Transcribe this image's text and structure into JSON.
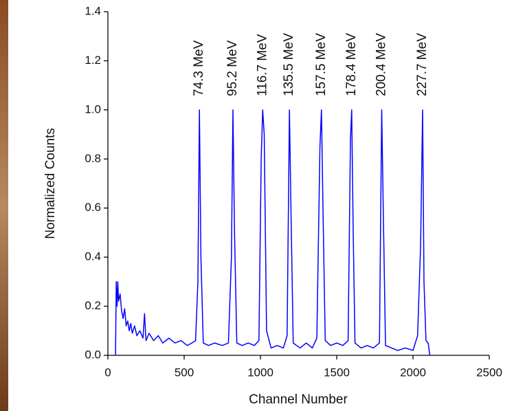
{
  "chart_data": {
    "type": "line",
    "x_label": "Channel Number",
    "y_label": "Normalized Counts",
    "xlim": [
      0,
      2500
    ],
    "xticks": [
      0,
      500,
      1000,
      1500,
      2000,
      2500
    ],
    "ylim": [
      0,
      1.4
    ],
    "yticks": [
      {
        "value": 0,
        "label": "0.0"
      },
      0.2,
      0.4,
      0.6,
      0.8,
      {
        "value": 1,
        "label": "1.0"
      },
      1.2,
      1.4
    ],
    "peak_labels": [
      {
        "text": "74.3 MeV",
        "x": 600
      },
      {
        "text": "95.2 MeV",
        "x": 820
      },
      {
        "text": "116.7 MeV",
        "x": 1015
      },
      {
        "text": "135.5 MeV",
        "x": 1190
      },
      {
        "text": "157.5 MeV",
        "x": 1400
      },
      {
        "text": "178.4 MeV",
        "x": 1598
      },
      {
        "text": "200.4 MeV",
        "x": 1795
      },
      {
        "text": "227.7 MeV",
        "x": 2063
      }
    ],
    "series": [
      {
        "color": "#0000ff",
        "x": [
          50,
          55,
          60,
          65,
          70,
          80,
          90,
          100,
          110,
          120,
          130,
          140,
          150,
          160,
          175,
          190,
          210,
          230,
          240,
          250,
          270,
          300,
          330,
          360,
          400,
          440,
          480,
          520,
          550,
          575,
          590,
          600,
          610,
          625,
          660,
          700,
          750,
          790,
          810,
          820,
          830,
          845,
          880,
          920,
          960,
          990,
          1005,
          1015,
          1025,
          1040,
          1070,
          1110,
          1150,
          1175,
          1190,
          1200,
          1215,
          1260,
          1300,
          1340,
          1370,
          1390,
          1400,
          1410,
          1425,
          1460,
          1500,
          1540,
          1575,
          1590,
          1598,
          1608,
          1620,
          1660,
          1700,
          1740,
          1780,
          1795,
          1805,
          1820,
          1860,
          1900,
          1950,
          2000,
          2030,
          2050,
          2063,
          2072,
          2085,
          2100,
          2110
        ],
        "values": [
          0,
          0.3,
          0.2,
          0.3,
          0.22,
          0.25,
          0.18,
          0.15,
          0.19,
          0.12,
          0.14,
          0.1,
          0.13,
          0.09,
          0.12,
          0.08,
          0.1,
          0.07,
          0.17,
          0.06,
          0.09,
          0.06,
          0.08,
          0.05,
          0.07,
          0.05,
          0.06,
          0.04,
          0.05,
          0.06,
          0.3,
          1,
          0.4,
          0.05,
          0.04,
          0.05,
          0.04,
          0.05,
          0.4,
          1,
          0.5,
          0.05,
          0.04,
          0.05,
          0.04,
          0.06,
          0.8,
          1,
          0.9,
          0.1,
          0.03,
          0.04,
          0.03,
          0.08,
          1,
          0.6,
          0.05,
          0.03,
          0.05,
          0.03,
          0.07,
          0.85,
          1,
          0.6,
          0.06,
          0.04,
          0.05,
          0.04,
          0.06,
          0.88,
          1,
          0.5,
          0.05,
          0.03,
          0.04,
          0.03,
          0.05,
          1,
          0.6,
          0.04,
          0.03,
          0.02,
          0.03,
          0.02,
          0.08,
          0.45,
          1,
          0.3,
          0.06,
          0.05,
          0
        ]
      }
    ]
  }
}
